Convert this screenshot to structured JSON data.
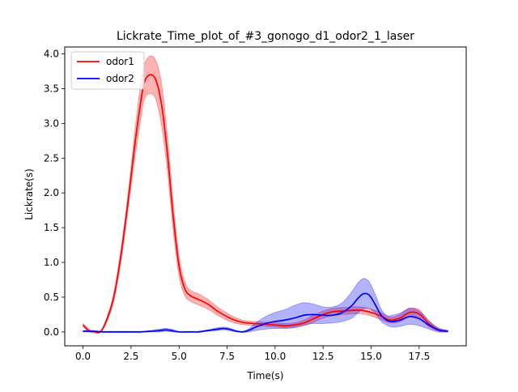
{
  "chart_data": {
    "type": "line",
    "title": "Lickrate_Time_plot_of_#3_gonogo_d1_odor2_1_laser",
    "xlabel": "Time(s)",
    "ylabel": "Lickrate(s)",
    "xlim": [
      -0.95,
      19.95
    ],
    "ylim": [
      -0.2,
      4.1
    ],
    "xticks": [
      0.0,
      2.5,
      5.0,
      7.5,
      10.0,
      12.5,
      15.0,
      17.5
    ],
    "xtick_labels": [
      "0.0",
      "2.5",
      "5.0",
      "7.5",
      "10.0",
      "12.5",
      "15.0",
      "17.5"
    ],
    "yticks": [
      0.0,
      0.5,
      1.0,
      1.5,
      2.0,
      2.5,
      3.0,
      3.5,
      4.0
    ],
    "ytick_labels": [
      "0.0",
      "0.5",
      "1.0",
      "1.5",
      "2.0",
      "2.5",
      "3.0",
      "3.5",
      "4.0"
    ],
    "grid": false,
    "legend": "top-left",
    "series": [
      {
        "name": "odor1",
        "color": "#ff0000",
        "band_color": "#ff0000",
        "x": [
          0.0,
          0.3,
          0.6,
          0.9,
          1.2,
          1.6,
          2.0,
          2.4,
          2.7,
          3.0,
          3.2,
          3.5,
          3.8,
          4.1,
          4.4,
          4.7,
          5.0,
          5.3,
          5.6,
          6.0,
          6.5,
          7.0,
          7.5,
          8.0,
          8.5,
          9.0,
          9.5,
          10.0,
          10.5,
          11.0,
          11.5,
          12.0,
          12.5,
          13.0,
          13.5,
          14.0,
          14.5,
          15.0,
          15.5,
          16.0,
          16.5,
          17.0,
          17.5,
          18.0,
          18.5,
          19.0
        ],
        "y": [
          0.1,
          0.02,
          0.0,
          0.0,
          0.15,
          0.5,
          1.15,
          2.0,
          2.7,
          3.3,
          3.6,
          3.7,
          3.62,
          3.25,
          2.55,
          1.65,
          0.95,
          0.62,
          0.52,
          0.47,
          0.4,
          0.3,
          0.22,
          0.16,
          0.13,
          0.12,
          0.11,
          0.1,
          0.09,
          0.1,
          0.13,
          0.19,
          0.25,
          0.29,
          0.3,
          0.31,
          0.31,
          0.28,
          0.23,
          0.17,
          0.2,
          0.28,
          0.26,
          0.12,
          0.03,
          0.01
        ],
        "upper": [
          0.12,
          0.04,
          0.01,
          0.01,
          0.18,
          0.56,
          1.25,
          2.12,
          2.9,
          3.55,
          3.85,
          3.97,
          3.9,
          3.55,
          2.8,
          1.85,
          1.1,
          0.72,
          0.6,
          0.55,
          0.47,
          0.36,
          0.27,
          0.2,
          0.16,
          0.15,
          0.14,
          0.13,
          0.12,
          0.13,
          0.17,
          0.24,
          0.3,
          0.34,
          0.35,
          0.36,
          0.36,
          0.33,
          0.28,
          0.21,
          0.25,
          0.34,
          0.32,
          0.16,
          0.05,
          0.02
        ],
        "lower": [
          0.08,
          0.0,
          0.0,
          0.0,
          0.12,
          0.44,
          1.05,
          1.88,
          2.5,
          3.05,
          3.35,
          3.43,
          3.34,
          2.95,
          2.3,
          1.45,
          0.8,
          0.52,
          0.44,
          0.39,
          0.33,
          0.24,
          0.17,
          0.12,
          0.1,
          0.09,
          0.08,
          0.07,
          0.06,
          0.07,
          0.09,
          0.14,
          0.2,
          0.24,
          0.25,
          0.26,
          0.26,
          0.23,
          0.18,
          0.13,
          0.15,
          0.22,
          0.2,
          0.08,
          0.01,
          0.0
        ]
      },
      {
        "name": "odor2",
        "color": "#0000ff",
        "band_color": "#0000ff",
        "x": [
          0.0,
          0.5,
          1.0,
          1.5,
          2.0,
          2.5,
          3.0,
          3.5,
          4.0,
          4.3,
          4.6,
          5.0,
          5.5,
          6.0,
          6.5,
          7.0,
          7.3,
          7.6,
          8.0,
          8.3,
          8.6,
          9.0,
          9.5,
          10.0,
          10.5,
          11.0,
          11.5,
          12.0,
          12.5,
          13.0,
          13.5,
          14.0,
          14.3,
          14.6,
          14.9,
          15.2,
          15.5,
          15.8,
          16.1,
          16.5,
          17.0,
          17.5,
          18.0,
          18.5,
          19.0
        ],
        "y": [
          0.01,
          0.01,
          0.0,
          0.0,
          0.0,
          0.0,
          0.0,
          0.01,
          0.02,
          0.03,
          0.02,
          0.0,
          0.0,
          0.0,
          0.02,
          0.04,
          0.05,
          0.04,
          0.01,
          0.0,
          0.02,
          0.07,
          0.12,
          0.15,
          0.17,
          0.2,
          0.24,
          0.25,
          0.24,
          0.24,
          0.28,
          0.38,
          0.48,
          0.55,
          0.53,
          0.4,
          0.25,
          0.17,
          0.15,
          0.17,
          0.22,
          0.19,
          0.1,
          0.03,
          0.01
        ],
        "upper": [
          0.02,
          0.02,
          0.01,
          0.01,
          0.01,
          0.01,
          0.01,
          0.02,
          0.04,
          0.05,
          0.04,
          0.01,
          0.01,
          0.01,
          0.03,
          0.06,
          0.07,
          0.06,
          0.02,
          0.01,
          0.04,
          0.13,
          0.22,
          0.28,
          0.32,
          0.38,
          0.42,
          0.4,
          0.36,
          0.36,
          0.42,
          0.58,
          0.7,
          0.77,
          0.72,
          0.55,
          0.34,
          0.24,
          0.24,
          0.27,
          0.34,
          0.3,
          0.16,
          0.06,
          0.02
        ],
        "lower": [
          0.0,
          0.0,
          0.0,
          0.0,
          0.0,
          0.0,
          0.0,
          0.0,
          0.0,
          0.01,
          0.0,
          0.0,
          0.0,
          0.0,
          0.01,
          0.02,
          0.03,
          0.02,
          0.0,
          0.0,
          0.0,
          0.02,
          0.04,
          0.05,
          0.05,
          0.06,
          0.1,
          0.12,
          0.12,
          0.13,
          0.15,
          0.2,
          0.27,
          0.33,
          0.34,
          0.27,
          0.16,
          0.1,
          0.07,
          0.08,
          0.11,
          0.09,
          0.04,
          0.0,
          0.0
        ]
      }
    ]
  }
}
